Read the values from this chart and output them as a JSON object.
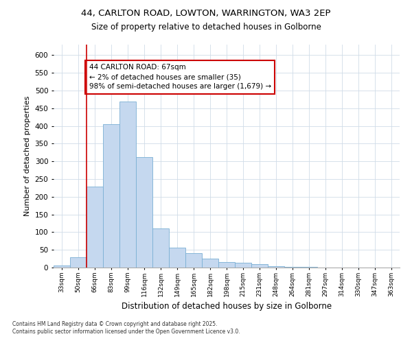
{
  "title_line1": "44, CARLTON ROAD, LOWTON, WARRINGTON, WA3 2EP",
  "title_line2": "Size of property relative to detached houses in Golborne",
  "xlabel": "Distribution of detached houses by size in Golborne",
  "ylabel": "Number of detached properties",
  "categories": [
    "33sqm",
    "50sqm",
    "66sqm",
    "83sqm",
    "99sqm",
    "116sqm",
    "132sqm",
    "149sqm",
    "165sqm",
    "182sqm",
    "198sqm",
    "215sqm",
    "231sqm",
    "248sqm",
    "264sqm",
    "281sqm",
    "297sqm",
    "314sqm",
    "330sqm",
    "347sqm",
    "363sqm"
  ],
  "values": [
    5,
    30,
    228,
    405,
    470,
    312,
    110,
    57,
    40,
    25,
    15,
    13,
    10,
    4,
    2,
    1,
    0,
    0,
    0,
    0,
    0
  ],
  "bar_color": "#c5d8ef",
  "bar_edge_color": "#7aafd4",
  "grid_color": "#d0dce8",
  "background_color": "#ffffff",
  "vline_x_index": 2,
  "vline_color": "#cc0000",
  "annotation_text": "44 CARLTON ROAD: 67sqm\n← 2% of detached houses are smaller (35)\n98% of semi-detached houses are larger (1,679) →",
  "annotation_box_color": "white",
  "annotation_box_edgecolor": "#cc0000",
  "footer_text": "Contains HM Land Registry data © Crown copyright and database right 2025.\nContains public sector information licensed under the Open Government Licence v3.0.",
  "ylim": [
    0,
    630
  ],
  "yticks": [
    0,
    50,
    100,
    150,
    200,
    250,
    300,
    350,
    400,
    450,
    500,
    550,
    600
  ]
}
